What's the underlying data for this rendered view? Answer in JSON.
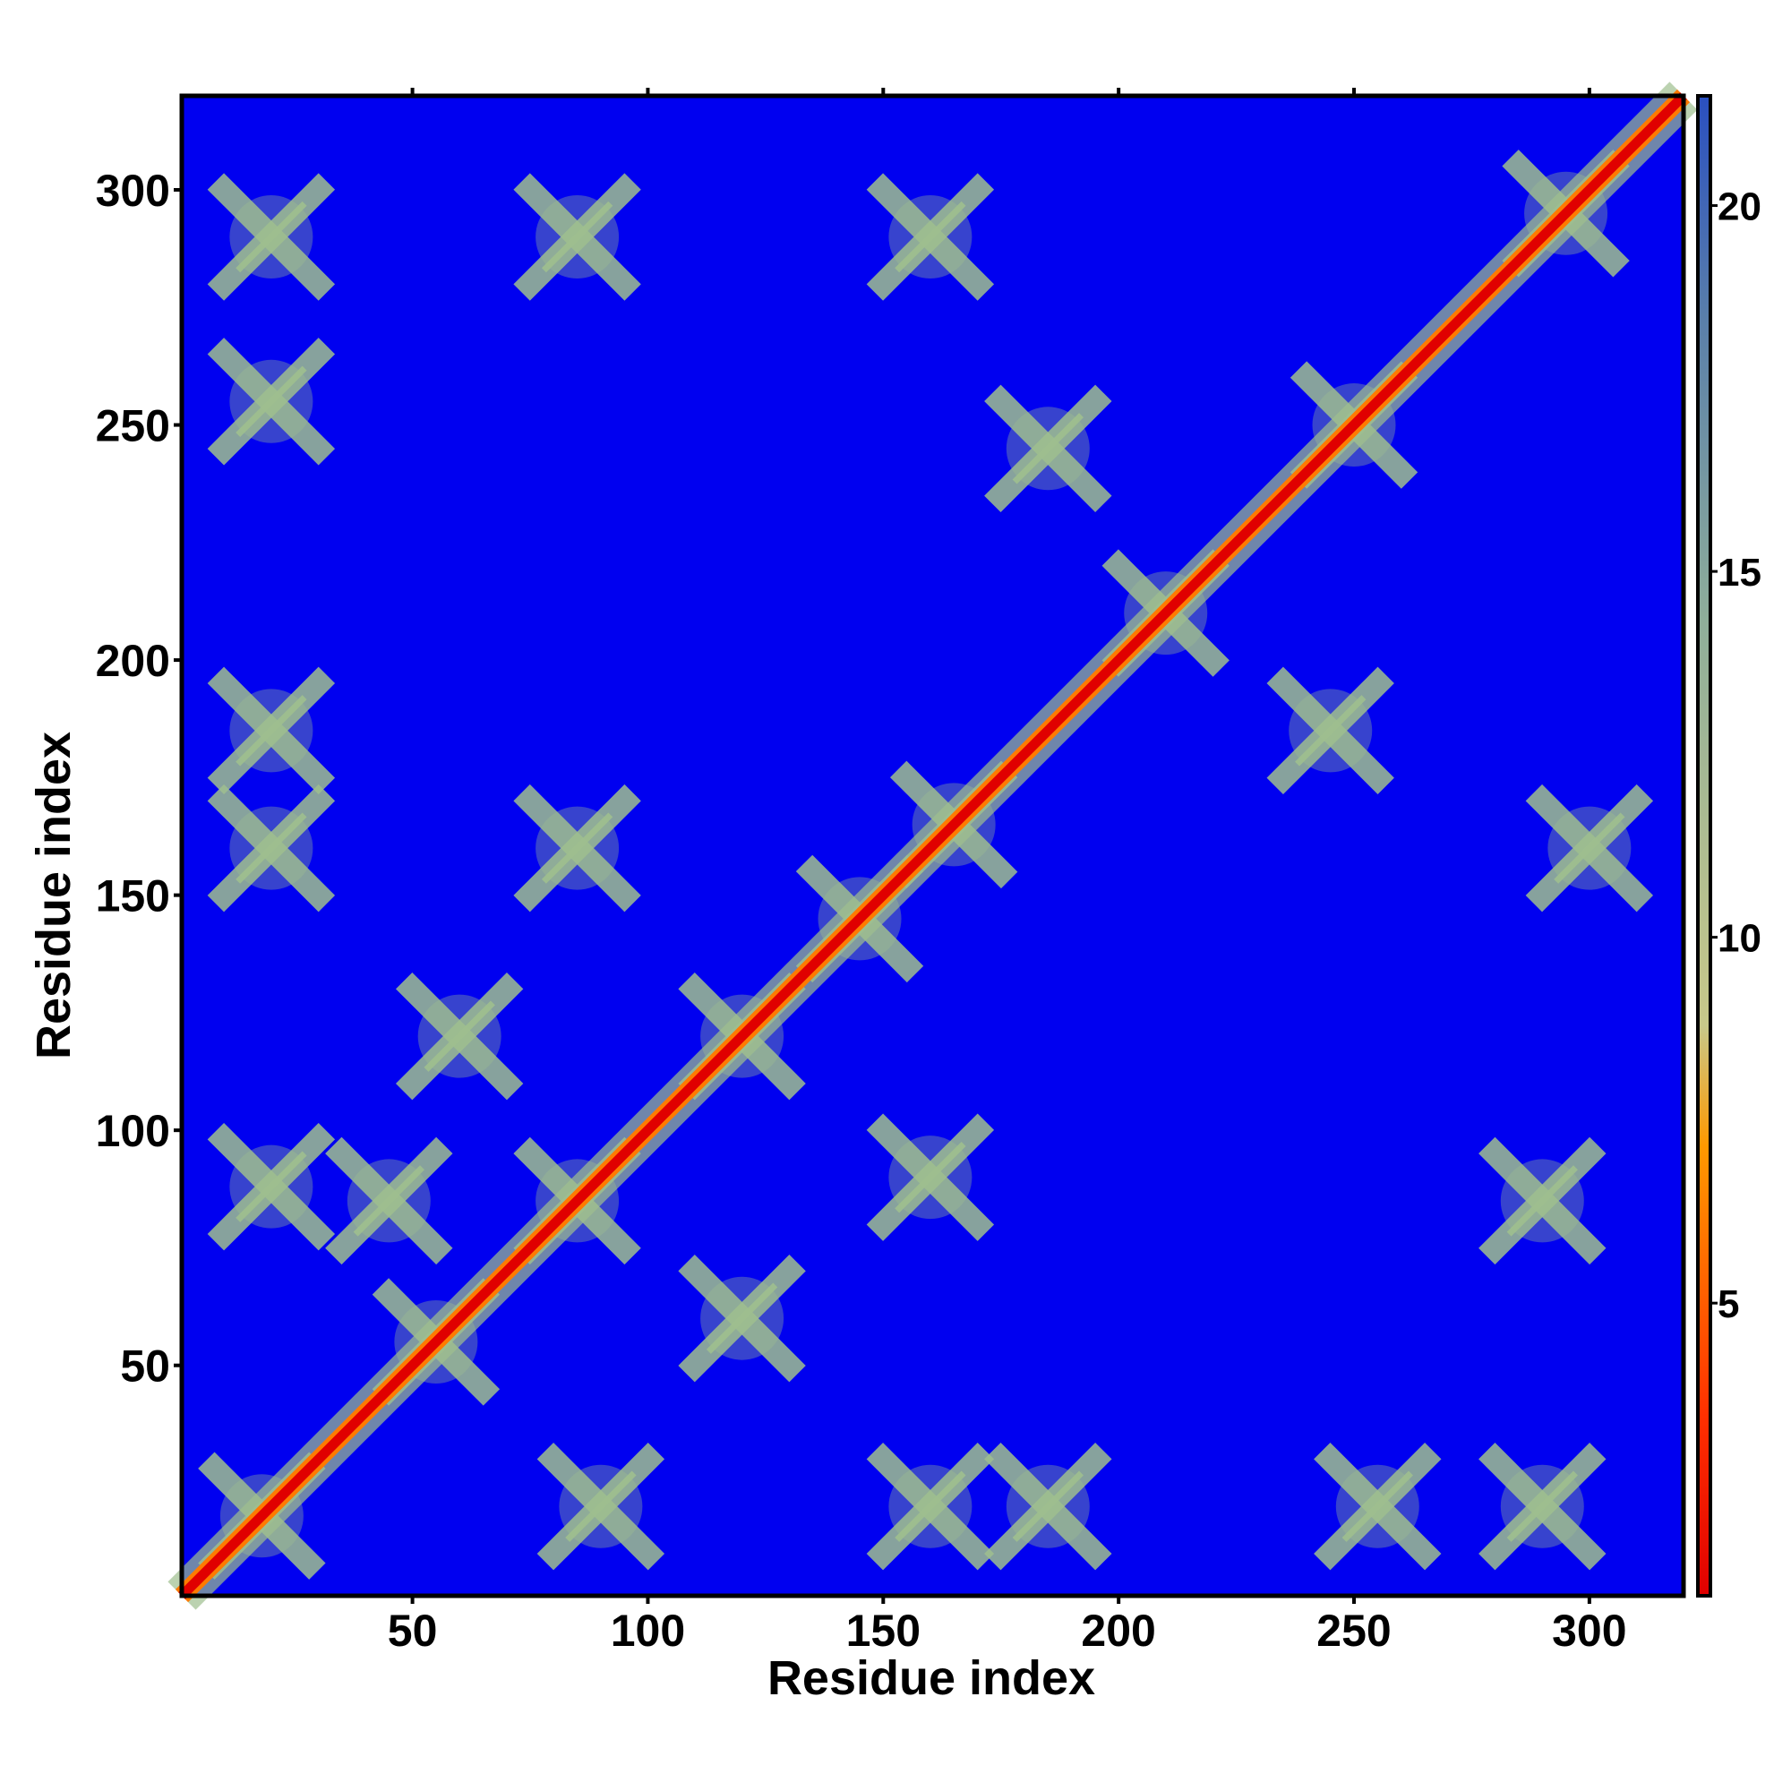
{
  "chart_data": {
    "type": "heatmap",
    "title": "",
    "xlabel": "Residue index",
    "ylabel": "Residue index",
    "xlim": [
      1,
      320
    ],
    "ylim": [
      1,
      320
    ],
    "x_ticks": [
      50,
      100,
      150,
      200,
      250,
      300
    ],
    "y_ticks": [
      50,
      100,
      150,
      200,
      250,
      300
    ],
    "colorbar": {
      "ticks": [
        5,
        10,
        15,
        20
      ],
      "range": [
        1,
        21.5
      ],
      "colors": {
        "low": "#e00000",
        "mid_low": "#ff7a00",
        "mid": "#9fbf8f",
        "high": "#4a6f9f",
        "background": "#0000f0"
      }
    },
    "matrix_description": "symmetric residue-residue distance map; diagonal band of low values (red) with cross-shaped contact clusters",
    "diagonal": {
      "from": 1,
      "to": 320,
      "value": 3.5
    },
    "contact_clusters": [
      {
        "x": 18,
        "y": 18,
        "value": 6
      },
      {
        "x": 55,
        "y": 55,
        "value": 6
      },
      {
        "x": 85,
        "y": 85,
        "value": 6
      },
      {
        "x": 120,
        "y": 120,
        "value": 7
      },
      {
        "x": 145,
        "y": 145,
        "value": 6
      },
      {
        "x": 165,
        "y": 165,
        "value": 6
      },
      {
        "x": 210,
        "y": 210,
        "value": 7
      },
      {
        "x": 250,
        "y": 250,
        "value": 7
      },
      {
        "x": 295,
        "y": 295,
        "value": 6
      },
      {
        "x": 20,
        "y": 290,
        "value": 8
      },
      {
        "x": 20,
        "y": 255,
        "value": 8
      },
      {
        "x": 85,
        "y": 290,
        "value": 9
      },
      {
        "x": 160,
        "y": 290,
        "value": 9
      },
      {
        "x": 20,
        "y": 185,
        "value": 8
      },
      {
        "x": 20,
        "y": 160,
        "value": 8
      },
      {
        "x": 85,
        "y": 160,
        "value": 8
      },
      {
        "x": 20,
        "y": 88,
        "value": 9
      },
      {
        "x": 45,
        "y": 85,
        "value": 9
      },
      {
        "x": 160,
        "y": 90,
        "value": 8
      },
      {
        "x": 290,
        "y": 85,
        "value": 9
      },
      {
        "x": 300,
        "y": 160,
        "value": 9
      },
      {
        "x": 160,
        "y": 20,
        "value": 8
      },
      {
        "x": 185,
        "y": 20,
        "value": 8
      },
      {
        "x": 255,
        "y": 20,
        "value": 9
      },
      {
        "x": 290,
        "y": 20,
        "value": 8
      },
      {
        "x": 90,
        "y": 20,
        "value": 9
      },
      {
        "x": 185,
        "y": 245,
        "value": 9
      },
      {
        "x": 245,
        "y": 185,
        "value": 9
      },
      {
        "x": 60,
        "y": 120,
        "value": 9
      },
      {
        "x": 120,
        "y": 60,
        "value": 9
      }
    ]
  }
}
